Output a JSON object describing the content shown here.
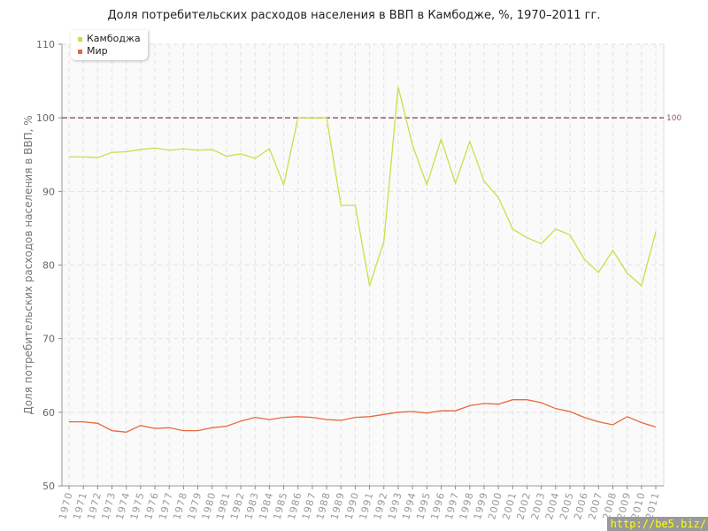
{
  "chart_data": {
    "type": "line",
    "title": "Доля потребительских расходов населения в ВВП в Камбодже, %, 1970–2011 гг.",
    "ylabel": "Доля потребительских расходов населения в ВВП, %",
    "xlabel": "",
    "ylim": [
      50,
      110
    ],
    "yticks": [
      50,
      60,
      70,
      80,
      90,
      100,
      110
    ],
    "grid": true,
    "legend_placement": "top-left",
    "reference_line": {
      "value": 100,
      "label": "100",
      "color": "#a05868"
    },
    "x": [
      1970,
      1971,
      1972,
      1973,
      1974,
      1975,
      1976,
      1977,
      1978,
      1979,
      1980,
      1981,
      1982,
      1983,
      1984,
      1985,
      1986,
      1987,
      1988,
      1989,
      1990,
      1991,
      1992,
      1993,
      1994,
      1995,
      1996,
      1997,
      1998,
      1999,
      2000,
      2001,
      2002,
      2003,
      2004,
      2005,
      2006,
      2007,
      2008,
      2009,
      2010,
      2011
    ],
    "series": [
      {
        "name": "Камбоджа",
        "color": "#c8e04a",
        "values": [
          94.7,
          94.7,
          94.6,
          95.3,
          95.4,
          95.7,
          95.9,
          95.6,
          95.8,
          95.6,
          95.7,
          94.8,
          95.1,
          94.5,
          95.8,
          90.9,
          100,
          100,
          100,
          88.1,
          88.1,
          77.2,
          83.2,
          104.2,
          96.3,
          90.9,
          97.1,
          91.1,
          96.8,
          91.4,
          89.2,
          84.9,
          83.7,
          82.9,
          84.9,
          84.1,
          80.8,
          79.0,
          82.0,
          78.9,
          77.2,
          84.5
        ]
      },
      {
        "name": "Мир",
        "color": "#e8683a",
        "values": [
          58.7,
          58.7,
          58.5,
          57.5,
          57.3,
          58.2,
          57.8,
          57.9,
          57.5,
          57.5,
          57.9,
          58.1,
          58.8,
          59.3,
          59.0,
          59.3,
          59.4,
          59.3,
          59.0,
          58.9,
          59.3,
          59.4,
          59.7,
          60.0,
          60.1,
          59.9,
          60.2,
          60.2,
          60.9,
          61.2,
          61.1,
          61.7,
          61.7,
          61.3,
          60.5,
          60.1,
          59.3,
          58.7,
          58.3,
          59.4,
          58.6,
          58.0
        ]
      }
    ]
  },
  "watermark": "http://be5.biz/"
}
